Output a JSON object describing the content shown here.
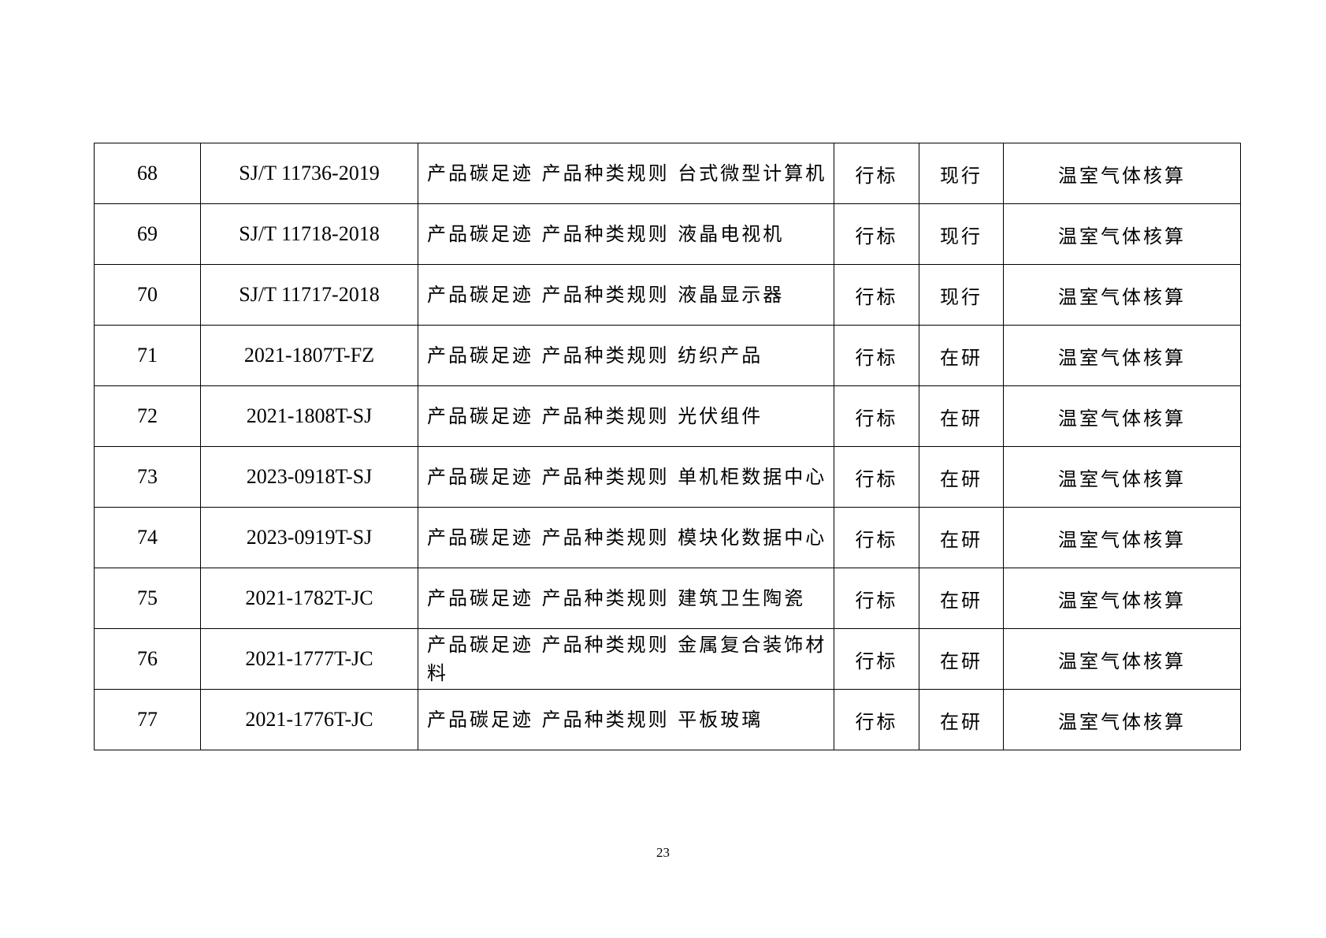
{
  "rows": [
    {
      "no": "68",
      "code": "SJ/T 11736-2019",
      "name": "产品碳足迹 产品种类规则 台式微型计算机",
      "type": "行标",
      "status": "现行",
      "category": "温室气体核算"
    },
    {
      "no": "69",
      "code": "SJ/T 11718-2018",
      "name": "产品碳足迹 产品种类规则 液晶电视机",
      "type": "行标",
      "status": "现行",
      "category": "温室气体核算"
    },
    {
      "no": "70",
      "code": "SJ/T 11717-2018",
      "name": "产品碳足迹 产品种类规则 液晶显示器",
      "type": "行标",
      "status": "现行",
      "category": "温室气体核算"
    },
    {
      "no": "71",
      "code": "2021-1807T-FZ",
      "name": "产品碳足迹 产品种类规则 纺织产品",
      "type": "行标",
      "status": "在研",
      "category": "温室气体核算"
    },
    {
      "no": "72",
      "code": "2021-1808T-SJ",
      "name": "产品碳足迹 产品种类规则 光伏组件",
      "type": "行标",
      "status": "在研",
      "category": "温室气体核算"
    },
    {
      "no": "73",
      "code": "2023-0918T-SJ",
      "name": "产品碳足迹 产品种类规则 单机柜数据中心",
      "type": "行标",
      "status": "在研",
      "category": "温室气体核算"
    },
    {
      "no": "74",
      "code": "2023-0919T-SJ",
      "name": "产品碳足迹 产品种类规则 模块化数据中心",
      "type": "行标",
      "status": "在研",
      "category": "温室气体核算"
    },
    {
      "no": "75",
      "code": "2021-1782T-JC",
      "name": "产品碳足迹 产品种类规则 建筑卫生陶瓷",
      "type": "行标",
      "status": "在研",
      "category": "温室气体核算"
    },
    {
      "no": "76",
      "code": "2021-1777T-JC",
      "name": "产品碳足迹 产品种类规则 金属复合装饰材料",
      "type": "行标",
      "status": "在研",
      "category": "温室气体核算"
    },
    {
      "no": "77",
      "code": "2021-1776T-JC",
      "name": "产品碳足迹 产品种类规则 平板玻璃",
      "type": "行标",
      "status": "在研",
      "category": "温室气体核算"
    }
  ],
  "page_number": "23"
}
